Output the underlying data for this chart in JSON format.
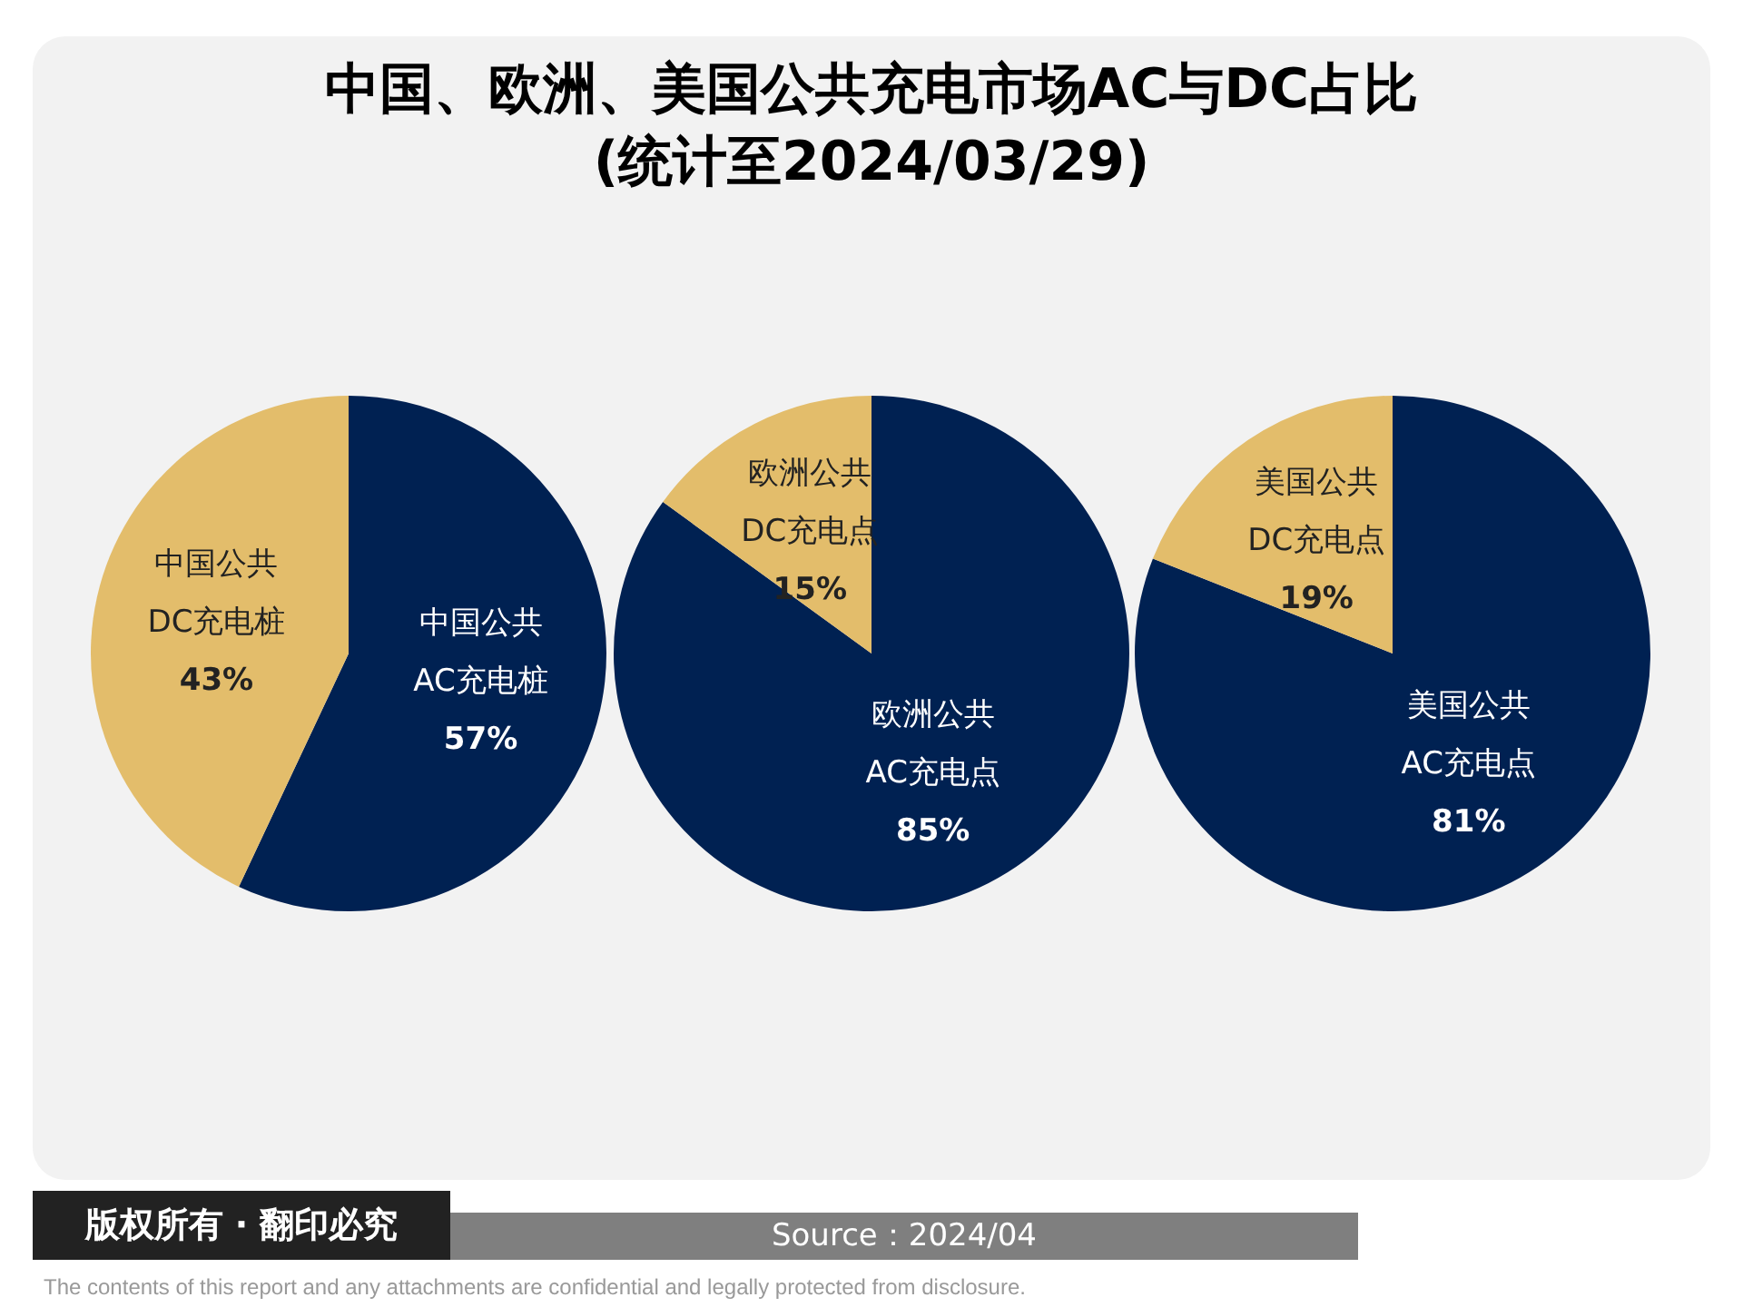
{
  "chart_data": [
    {
      "type": "pie",
      "title": "中国、欧洲、美国公共充电市场AC与DC占比\n(统计至2024/03/29)",
      "categories": [
        "中国公共\nAC充电桩",
        "中国公共\nDC充电桩"
      ],
      "values": [
        57,
        43
      ],
      "value_labels": [
        "57%",
        "43%"
      ],
      "colors": [
        "#002152",
        "#e3bd6b"
      ],
      "legend": false
    },
    {
      "type": "pie",
      "categories": [
        "欧洲公共\nAC充电点",
        "欧洲公共\nDC充电点"
      ],
      "values": [
        85,
        15
      ],
      "value_labels": [
        "85%",
        "15%"
      ],
      "colors": [
        "#002152",
        "#e3bd6b"
      ],
      "legend": false
    },
    {
      "type": "pie",
      "categories": [
        "美国公共\nAC充电点",
        "美国公共\nDC充电点"
      ],
      "values": [
        81,
        19
      ],
      "value_labels": [
        "81%",
        "19%"
      ],
      "colors": [
        "#002152",
        "#e3bd6b"
      ],
      "legend": false,
      "annotations": [
        "版权所有 · 翻印必究",
        "Source：2024/04",
        "The contents of this report and any attachments are confidential and legally protected from disclosure."
      ]
    }
  ]
}
